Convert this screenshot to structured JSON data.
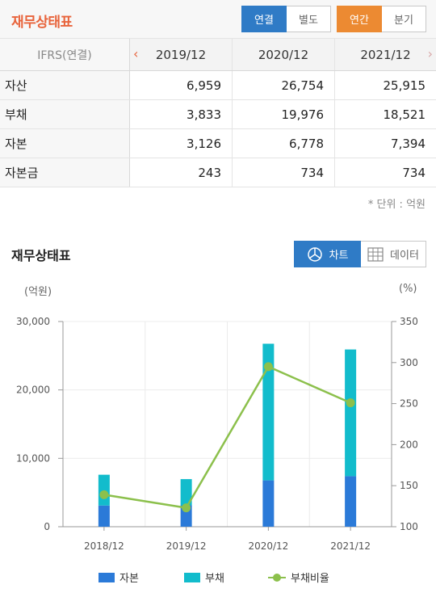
{
  "header": {
    "title": "재무상태표",
    "consolidation": [
      {
        "label": "연결",
        "active": true
      },
      {
        "label": "별도",
        "active": false
      }
    ],
    "period": [
      {
        "label": "연간",
        "active": true
      },
      {
        "label": "분기",
        "active": false
      }
    ]
  },
  "table": {
    "corner_label": "IFRS(연결)",
    "columns": [
      "2019/12",
      "2020/12",
      "2021/12"
    ],
    "rows": [
      {
        "label": "자산",
        "values": [
          "6,959",
          "26,754",
          "25,915"
        ]
      },
      {
        "label": "부채",
        "values": [
          "3,833",
          "19,976",
          "18,521"
        ]
      },
      {
        "label": "자본",
        "values": [
          "3,126",
          "6,778",
          "7,394"
        ]
      },
      {
        "label": "자본금",
        "values": [
          "243",
          "734",
          "734"
        ]
      }
    ],
    "unit_note": "* 단위 : 억원"
  },
  "chart_section": {
    "title": "재무상태표",
    "view_toggle": [
      {
        "label": "차트",
        "icon": "pie-chart-icon",
        "active": true
      },
      {
        "label": "데이터",
        "icon": "table-grid-icon",
        "active": false
      }
    ]
  },
  "colors": {
    "equity": "#2b7ad8",
    "liabilities": "#12bccc",
    "debt_ratio": "#8cc04c",
    "accent_orange": "#ec8a32",
    "accent_blue": "#2f7bc6"
  },
  "chart_data": {
    "type": "bar",
    "stacked": true,
    "categories": [
      "2018/12",
      "2019/12",
      "2020/12",
      "2021/12"
    ],
    "series": [
      {
        "name": "자본",
        "axis": "left",
        "type": "bar",
        "values": [
          3100,
          3126,
          6778,
          7394
        ]
      },
      {
        "name": "부채",
        "axis": "left",
        "type": "bar",
        "values": [
          4500,
          3833,
          19976,
          18521
        ]
      },
      {
        "name": "부채비율",
        "axis": "right",
        "type": "line",
        "values": [
          139,
          123,
          295,
          251
        ]
      }
    ],
    "y_left": {
      "title": "(억원)",
      "min": 0,
      "max": 30000,
      "ticks": [
        "0",
        "10,000",
        "20,000",
        "30,000"
      ],
      "tick_values": [
        0,
        10000,
        20000,
        30000
      ]
    },
    "y_right": {
      "title": "(%)",
      "min": 100,
      "max": 350,
      "ticks": [
        "100",
        "150",
        "200",
        "250",
        "300",
        "350"
      ],
      "tick_values": [
        100,
        150,
        200,
        250,
        300,
        350
      ]
    },
    "grid": true,
    "legend_position": "bottom"
  }
}
